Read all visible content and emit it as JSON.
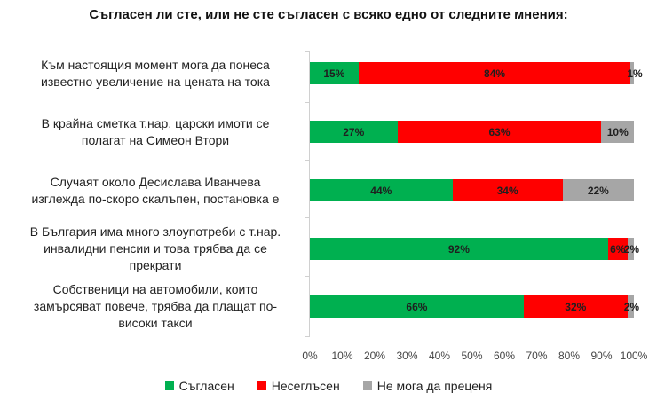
{
  "chart_data": {
    "type": "bar",
    "orientation": "horizontal",
    "stacked": true,
    "normalized": true,
    "title": "Съгласен ли сте, или не сте съгласен с всяко едно от следните мнения:",
    "categories": [
      "Към настоящия момент мога да понеса известно увеличение на цената на тока",
      "В крайна сметка т.нар. царски имоти се полагат на Симеон Втори",
      "Случаят около  Десислава Иванчева изглежда по-скоро скалъпен, постановка е",
      "В България има много злоупотреби с т.нар. инвалидни пенсии и това трябва да се прекрати",
      "Собственици на автомобили, които замърсяват повече, трябва да плащат по-високи такси"
    ],
    "category_lines": [
      [
        "Към настоящия момент мога да понеса",
        "известно увеличение на цената на тока"
      ],
      [
        "В крайна сметка т.нар. царски имоти се",
        "полагат на Симеон Втори"
      ],
      [
        "Случаят около  Десислава Иванчева",
        "изглежда по-скоро скалъпен, постановка е"
      ],
      [
        "В България има много злоупотреби с т.нар.",
        "инвалидни пенсии и това трябва да се",
        "прекрати"
      ],
      [
        "Собственици на автомобили, които",
        "замърсяват повече, трябва да плащат по-",
        "високи такси"
      ]
    ],
    "series": [
      {
        "name": "Съгласен",
        "color": "#00b050",
        "values": [
          15,
          27,
          44,
          92,
          66
        ]
      },
      {
        "name": "Несеглъсен",
        "color": "#ff0000",
        "values": [
          84,
          63,
          34,
          6,
          32
        ]
      },
      {
        "name": "Не мога да преценя",
        "color": "#a6a6a6",
        "values": [
          1,
          10,
          22,
          2,
          2
        ]
      }
    ],
    "value_labels": [
      [
        "15%",
        "84%",
        "1%"
      ],
      [
        "27%",
        "63%",
        "10%"
      ],
      [
        "44%",
        "34%",
        "22%"
      ],
      [
        "92%",
        "6%",
        "2%"
      ],
      [
        "66%",
        "32%",
        "2%"
      ]
    ],
    "xlabel": "",
    "ylabel": "",
    "xlim": [
      0,
      100
    ],
    "x_ticks": [
      "0%",
      "10%",
      "20%",
      "30%",
      "40%",
      "50%",
      "60%",
      "70%",
      "80%",
      "90%",
      "100%"
    ],
    "grid": false,
    "legend_position": "bottom"
  },
  "legend": [
    {
      "label": "Съгласен",
      "color": "#00b050"
    },
    {
      "label": "Несеглъсен",
      "color": "#ff0000"
    },
    {
      "label": "Не мога да преценя",
      "color": "#a6a6a6"
    }
  ]
}
